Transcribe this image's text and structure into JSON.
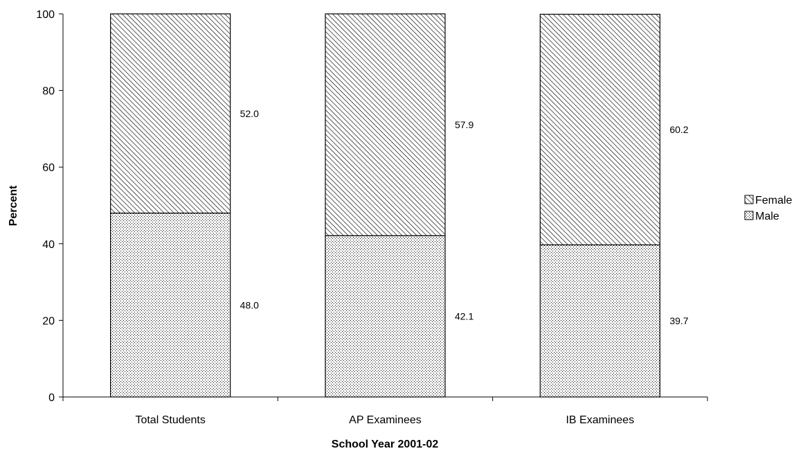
{
  "chart_data": {
    "type": "bar",
    "stacked": true,
    "categories": [
      "Total Students",
      "AP Examinees",
      "IB Examinees"
    ],
    "series": [
      {
        "name": "Male",
        "values": [
          48.0,
          42.1,
          39.7
        ],
        "labels": [
          "48.0",
          "42.1",
          "39.7"
        ],
        "fill_pattern": "dots"
      },
      {
        "name": "Female",
        "values": [
          52.0,
          57.9,
          60.2
        ],
        "labels": [
          "52.0",
          "57.9",
          "60.2"
        ],
        "fill_pattern": "diagonal-hatch"
      }
    ],
    "title": "",
    "xlabel": "School Year 2001-02",
    "ylabel": "Percent",
    "ylim": [
      0,
      100
    ],
    "yticks": [
      0,
      20,
      40,
      60,
      80,
      100
    ],
    "ytick_labels": [
      "0",
      "20",
      "40",
      "60",
      "80",
      "100"
    ],
    "grid": false,
    "legend": {
      "placement": "right",
      "entries": [
        "Female",
        "Male"
      ]
    },
    "colors": {
      "stroke": "#000000",
      "background": "#ffffff"
    }
  }
}
